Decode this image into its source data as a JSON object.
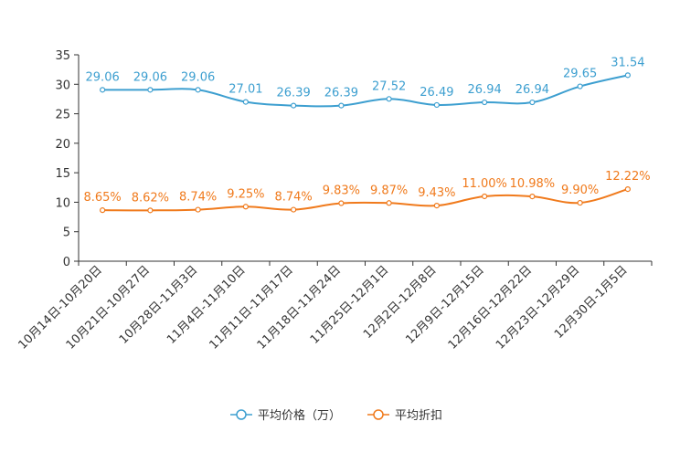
{
  "chart_data": {
    "type": "line",
    "title": "",
    "xlabel": "",
    "ylabel": "",
    "ylim": [
      0,
      35
    ],
    "yticks": [
      0,
      5,
      10,
      15,
      20,
      25,
      30,
      35
    ],
    "categories": [
      "10月14日-10月20日",
      "10月21日-10月27日",
      "10月28日-11月3日",
      "11月4日-11月10日",
      "11月11日-11月17日",
      "11月18日-11月24日",
      "11月25日-12月1日",
      "12月2日-12月8日",
      "12月9日-12月15日",
      "12月16日-12月22日",
      "12月23日-12月29日",
      "12月30日-1月5日"
    ],
    "series": [
      {
        "name": "平均价格（万）",
        "color": "#3d9fd0",
        "values": [
          29.06,
          29.06,
          29.06,
          27.01,
          26.39,
          26.39,
          27.52,
          26.49,
          26.94,
          26.94,
          29.65,
          31.54
        ],
        "labels": [
          "29.06",
          "29.06",
          "29.06",
          "27.01",
          "26.39",
          "26.39",
          "27.52",
          "26.49",
          "26.94",
          "26.94",
          "29.65",
          "31.54"
        ]
      },
      {
        "name": "平均折扣",
        "color": "#f07a1c",
        "values": [
          8.65,
          8.62,
          8.74,
          9.25,
          8.74,
          9.83,
          9.87,
          9.43,
          11.0,
          10.98,
          9.9,
          12.22
        ],
        "labels": [
          "8.65%",
          "8.62%",
          "8.74%",
          "9.25%",
          "8.74%",
          "9.83%",
          "9.87%",
          "9.43%",
          "11.00%",
          "10.98%",
          "9.90%",
          "12.22%"
        ]
      }
    ],
    "legend_position": "bottom-center",
    "grid": false
  }
}
